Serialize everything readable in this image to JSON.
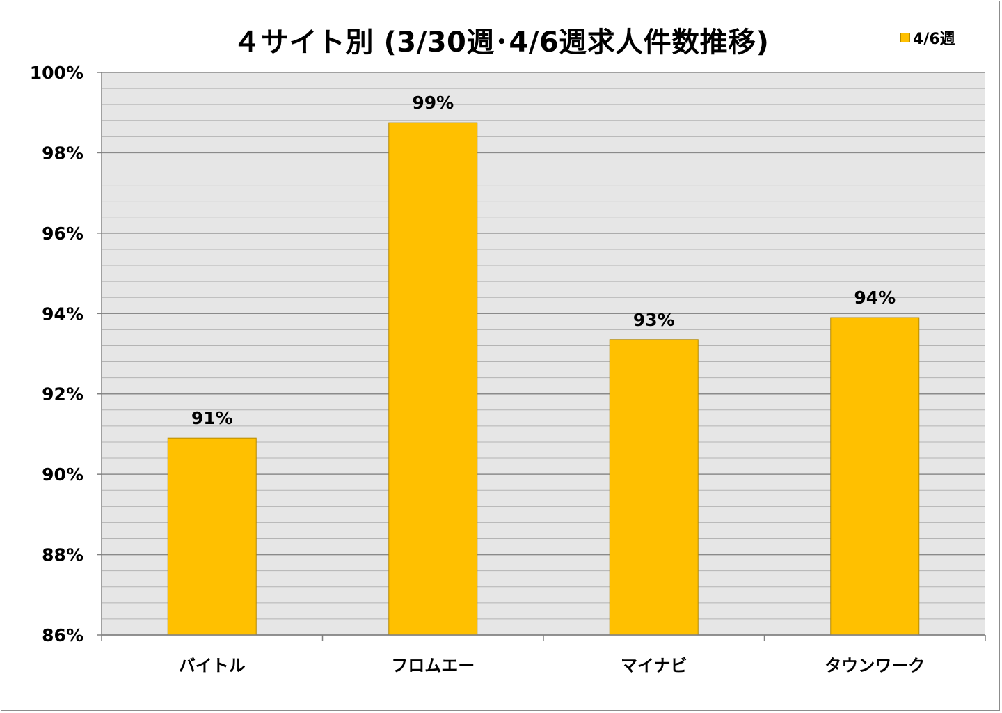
{
  "chart_data": {
    "type": "bar",
    "title": "４サイト別 (3/30週･4/6週求人件数推移)",
    "categories": [
      "バイトル",
      "フロムエー",
      "マイナビ",
      "タウンワーク"
    ],
    "series": [
      {
        "name": "4/6週",
        "values": [
          90.9,
          98.75,
          93.35,
          93.9
        ],
        "color": "#ffc000"
      }
    ],
    "data_labels": [
      "91%",
      "99%",
      "93%",
      "94%"
    ],
    "y_ticks": [
      "86%",
      "88%",
      "90%",
      "92%",
      "94%",
      "96%",
      "98%",
      "100%"
    ],
    "ylim": [
      86,
      100
    ],
    "major_step": 2,
    "minor_step": 0.4,
    "grid": true,
    "legend_position": "top-right",
    "plot_background": "#e6e6e6",
    "bar_color": "#ffc000"
  }
}
